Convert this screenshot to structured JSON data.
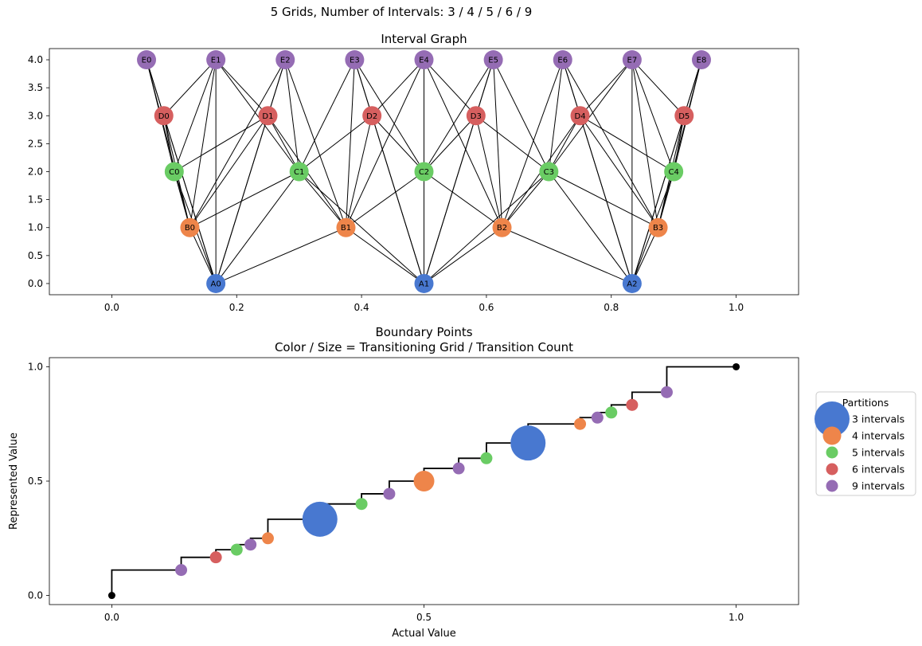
{
  "suptitle": "5 Grids, Number of Intervals: 3 / 4 / 5 / 6 / 9",
  "colors": {
    "A": "#4878d0",
    "B": "#ee854a",
    "C": "#6acc64",
    "D": "#d65f5f",
    "E": "#956cb4",
    "edge": "#000000",
    "endpoint": "#000000"
  },
  "chart_data": [
    {
      "type": "network",
      "title": "Interval Graph",
      "xlim": [
        -0.1,
        1.1
      ],
      "ylim": [
        -0.2,
        4.2
      ],
      "xticks": [
        "0.0",
        "0.2",
        "0.4",
        "0.6",
        "0.8",
        "1.0"
      ],
      "yticks": [
        "0.0",
        "0.5",
        "1.0",
        "1.5",
        "2.0",
        "2.5",
        "3.0",
        "3.5",
        "4.0"
      ],
      "levels": [
        {
          "grid": "A",
          "y": 0,
          "labels": [
            "A0",
            "A1",
            "A2"
          ],
          "x": [
            0.1667,
            0.5,
            0.8333
          ]
        },
        {
          "grid": "B",
          "y": 1,
          "labels": [
            "B0",
            "B1",
            "B2",
            "B3"
          ],
          "x": [
            0.125,
            0.375,
            0.625,
            0.875
          ]
        },
        {
          "grid": "C",
          "y": 2,
          "labels": [
            "C0",
            "C1",
            "C2",
            "C3",
            "C4"
          ],
          "x": [
            0.1,
            0.3,
            0.5,
            0.7,
            0.9
          ]
        },
        {
          "grid": "D",
          "y": 3,
          "labels": [
            "D0",
            "D1",
            "D2",
            "D3",
            "D4",
            "D5"
          ],
          "x": [
            0.0833,
            0.25,
            0.4167,
            0.5833,
            0.75,
            0.9167
          ]
        },
        {
          "grid": "E",
          "y": 4,
          "labels": [
            "E0",
            "E1",
            "E2",
            "E3",
            "E4",
            "E5",
            "E6",
            "E7",
            "E8"
          ],
          "x": [
            0.0556,
            0.1667,
            0.2778,
            0.3889,
            0.5,
            0.6111,
            0.7222,
            0.8333,
            0.9444
          ]
        }
      ]
    },
    {
      "type": "scatter",
      "title": "Boundary Points",
      "subtitle": "Color / Size = Transitioning Grid / Transition Count",
      "xlabel": "Actual Value",
      "ylabel": "Represented Value",
      "xlim": [
        -0.1,
        1.1
      ],
      "ylim": [
        -0.04,
        1.04
      ],
      "xticks": [
        "0.0",
        "0.5",
        "1.0"
      ],
      "yticks": [
        "0.0",
        "0.5",
        "1.0"
      ],
      "legend_title": "Partitions",
      "legend_position": "outside-right",
      "series": [
        {
          "name": "3 intervals",
          "grid": "A",
          "x": [
            0.3333,
            0.6667
          ],
          "y": [
            0.3333,
            0.6667
          ],
          "count": [
            5,
            5
          ]
        },
        {
          "name": "4 intervals",
          "grid": "B",
          "x": [
            0.25,
            0.5,
            0.75
          ],
          "y": [
            0.25,
            0.5,
            0.75
          ],
          "count": [
            1,
            3,
            1
          ]
        },
        {
          "name": "5 intervals",
          "grid": "C",
          "x": [
            0.2,
            0.4,
            0.6,
            0.8
          ],
          "y": [
            0.2,
            0.4,
            0.6,
            0.8
          ],
          "count": [
            1,
            1,
            1,
            1
          ]
        },
        {
          "name": "6 intervals",
          "grid": "D",
          "x": [
            0.1667,
            0.8333
          ],
          "y": [
            0.1667,
            0.8333
          ],
          "count": [
            1,
            1
          ]
        },
        {
          "name": "9 intervals",
          "grid": "E",
          "x": [
            0.1111,
            0.2222,
            0.4444,
            0.5556,
            0.7778,
            0.8889
          ],
          "y": [
            0.1111,
            0.2222,
            0.4444,
            0.5556,
            0.7778,
            0.8889
          ],
          "count": [
            1,
            1,
            1,
            1,
            1,
            1
          ]
        }
      ],
      "endpoints": {
        "x": [
          0,
          1
        ],
        "y": [
          0,
          1
        ]
      }
    }
  ]
}
